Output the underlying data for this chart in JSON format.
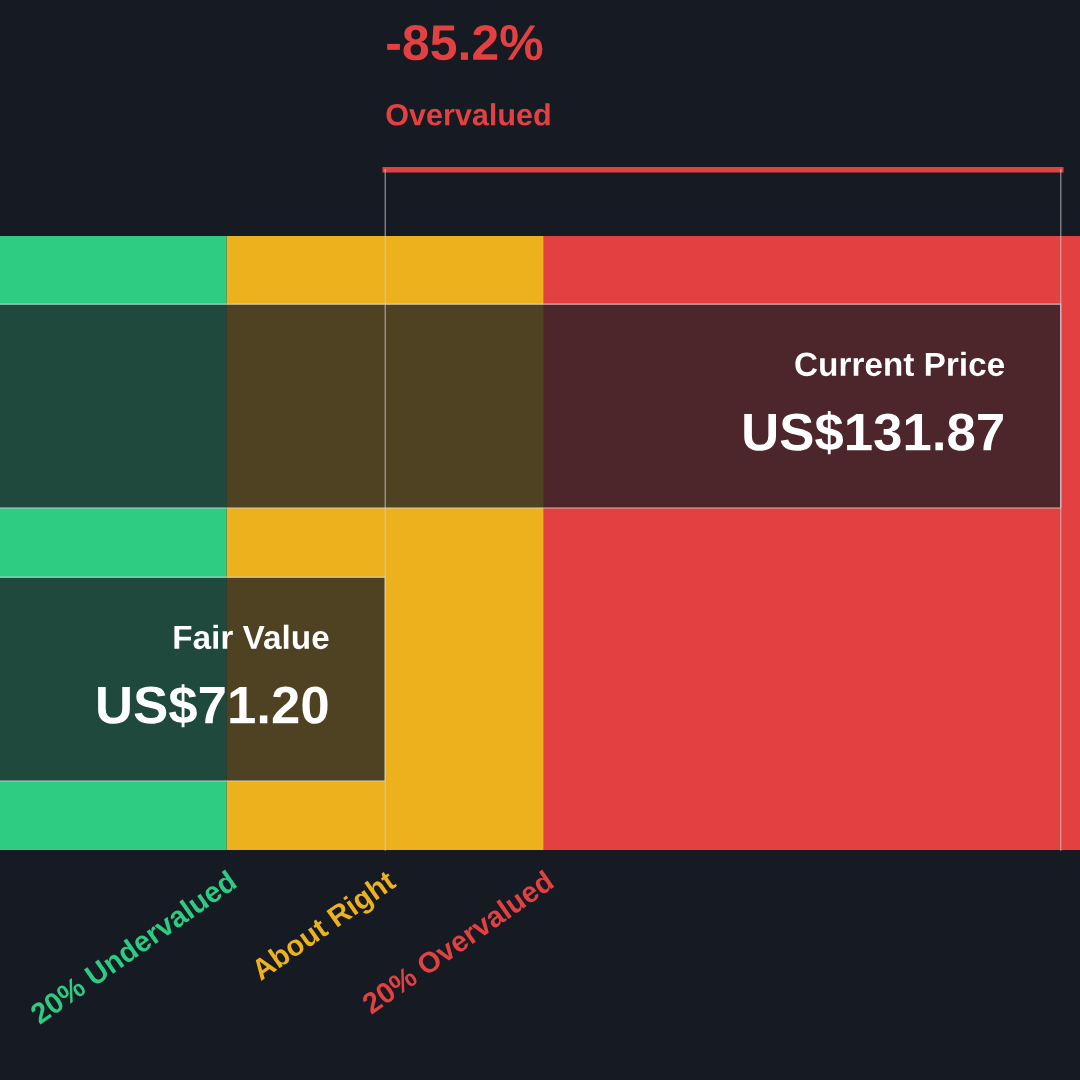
{
  "chart_data": {
    "type": "bar",
    "orientation": "horizontal",
    "categories": [
      "Current Price",
      "Fair Value"
    ],
    "values": [
      131.87,
      71.2
    ],
    "value_labels": [
      "US$131.87",
      "US$71.20"
    ],
    "color": "#1b1e25",
    "xlim": [
      36.6,
      133.6
    ],
    "legend": false,
    "ref_lines": [
      {
        "axis": "x",
        "value": 71.2,
        "color": "#cccccc"
      },
      {
        "axis": "x",
        "value": 131.87,
        "color": "#cccccc"
      }
    ],
    "bands": [
      {
        "axis": "x",
        "from": 36.6,
        "to": 56.96,
        "label": "20% Undervalued",
        "color": "#2ecc82"
      },
      {
        "axis": "x",
        "from": 56.96,
        "to": 85.44,
        "label": "About Right",
        "color": "#ecb11c"
      },
      {
        "axis": "x",
        "from": 85.44,
        "to": 133.6,
        "label": "20% Overvalued",
        "color": "#e34141"
      }
    ],
    "annotations": [
      "-85.2%",
      "Overvalued"
    ]
  }
}
